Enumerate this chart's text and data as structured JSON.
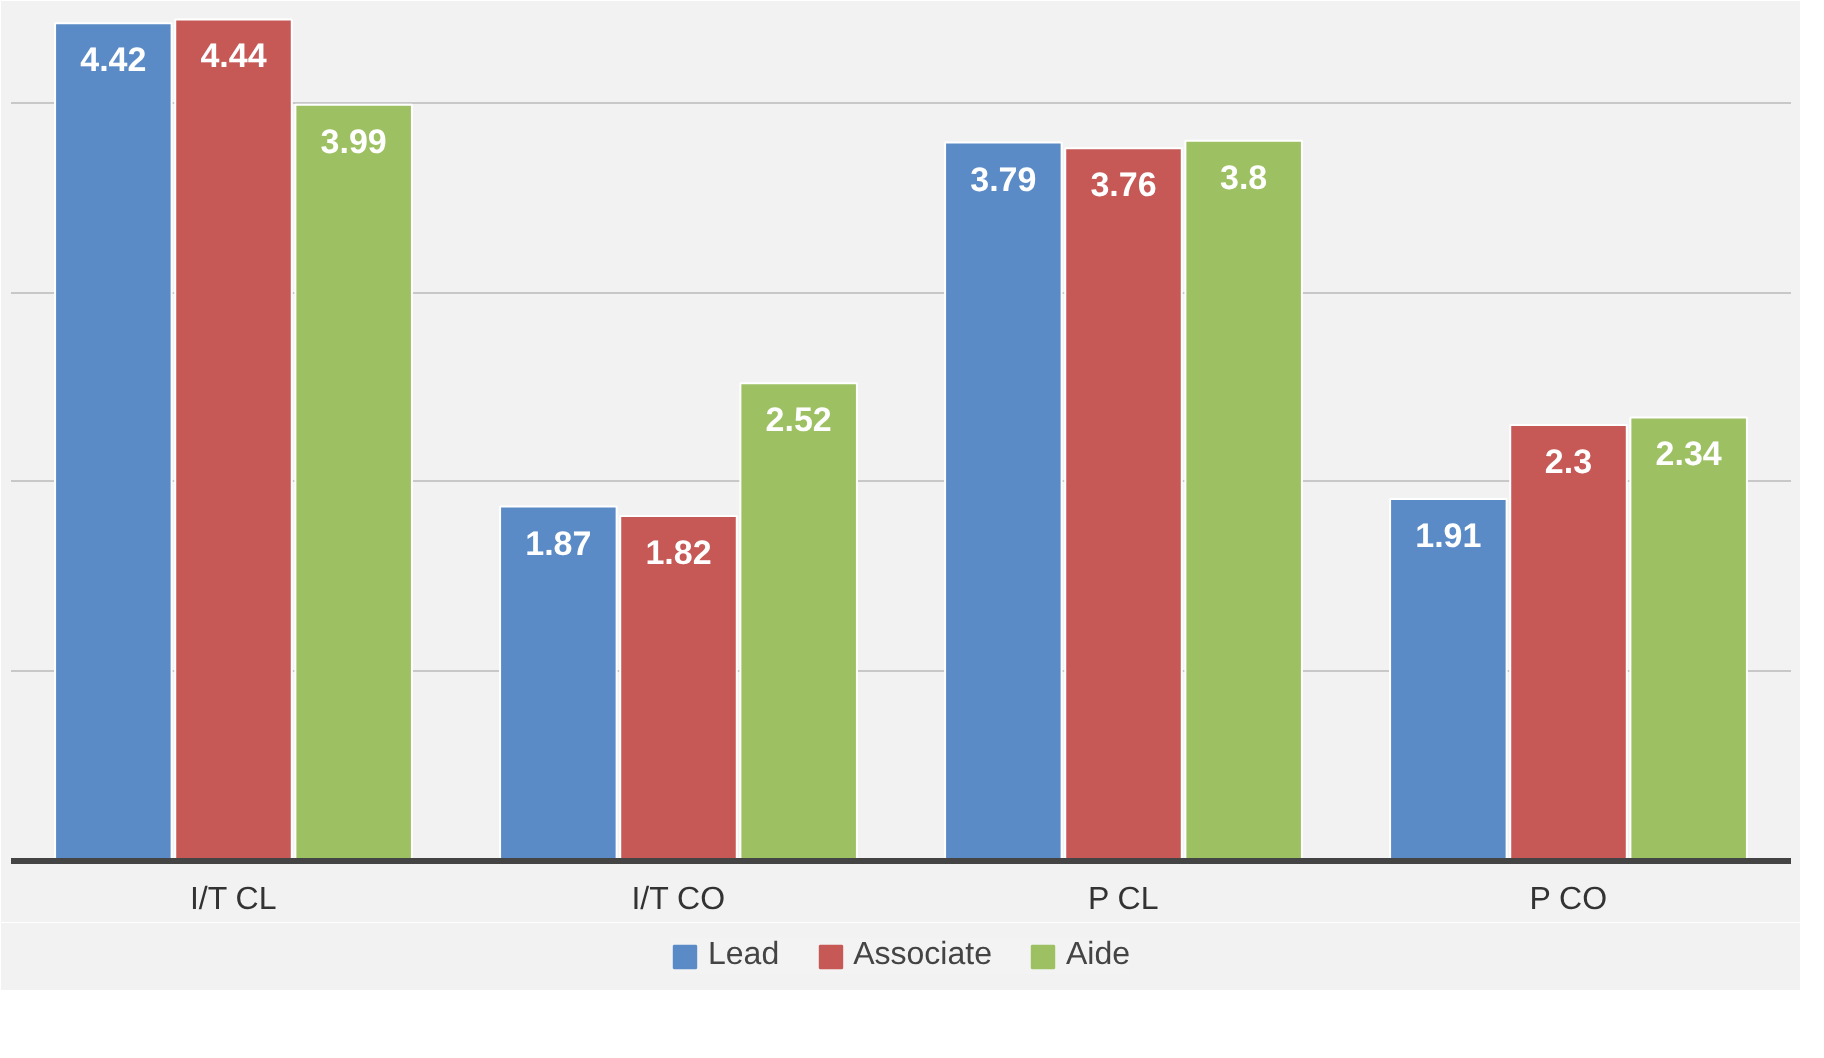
{
  "chart_data": {
    "type": "bar",
    "categories": [
      "I/T CL",
      "I/T CO",
      "P CL",
      "P CO"
    ],
    "series": [
      {
        "name": "Lead",
        "color": "#5b8bc6",
        "values": [
          4.42,
          1.87,
          3.79,
          1.91
        ]
      },
      {
        "name": "Associate",
        "color": "#c65856",
        "values": [
          4.44,
          1.82,
          3.76,
          2.3
        ]
      },
      {
        "name": "Aide",
        "color": "#9dc062",
        "values": [
          3.99,
          2.52,
          3.8,
          2.34
        ]
      }
    ],
    "grid": "y",
    "legend": "bottom",
    "data_labels": true,
    "tick_labels": "x"
  }
}
